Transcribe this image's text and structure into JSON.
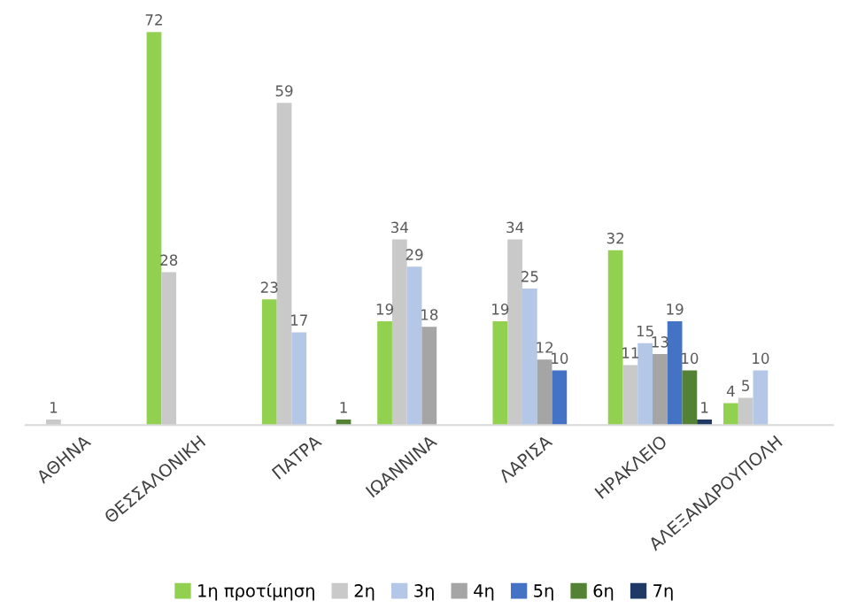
{
  "chart_data": {
    "type": "bar",
    "categories": [
      "ΑΘΗΝΑ",
      "ΘΕΣΣΑΛΟΝΙΚΗ",
      "ΠΑΤΡΑ",
      "ΙΩΑΝΝΙΝΑ",
      "ΛΑΡΙΣΑ",
      "ΗΡΑΚΛΕΙΟ",
      "ΑΛΕΞΑΝΔΡΟΥΠΟΛΗ"
    ],
    "series": [
      {
        "name": "1η προτίμηση",
        "color": "#92d050",
        "values": [
          null,
          72,
          23,
          19,
          19,
          32,
          4
        ]
      },
      {
        "name": "2η",
        "color": "#c9c9c9",
        "values": [
          1,
          28,
          59,
          34,
          34,
          11,
          5
        ]
      },
      {
        "name": "3η",
        "color": "#b4c7e7",
        "values": [
          null,
          null,
          17,
          29,
          25,
          15,
          10
        ]
      },
      {
        "name": "4η",
        "color": "#a5a5a5",
        "values": [
          null,
          null,
          null,
          18,
          12,
          13,
          null
        ]
      },
      {
        "name": "5η",
        "color": "#4472c4",
        "values": [
          null,
          null,
          null,
          null,
          10,
          19,
          null
        ]
      },
      {
        "name": "6η",
        "color": "#548235",
        "values": [
          null,
          null,
          1,
          null,
          null,
          10,
          null
        ]
      },
      {
        "name": "7η",
        "color": "#203864",
        "values": [
          null,
          null,
          null,
          null,
          null,
          1,
          null
        ]
      }
    ],
    "data_labels": true,
    "grid": false,
    "legend": "bottom"
  }
}
